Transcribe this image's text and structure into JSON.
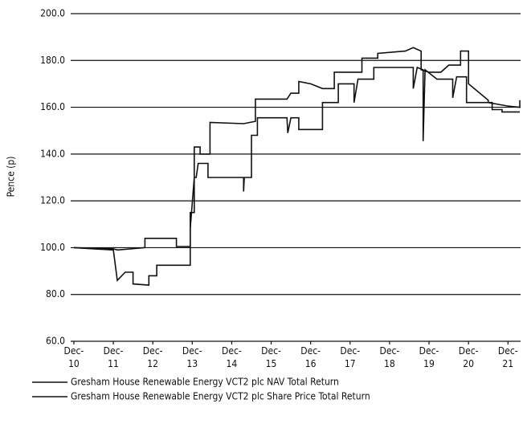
{
  "chart_data": {
    "type": "line",
    "y_label": "Pence (p)",
    "xlim": [
      2009.92,
      2021.32
    ],
    "xticks": [
      {
        "value": 2010,
        "label": "Dec-10"
      },
      {
        "value": 2011,
        "label": "Dec-11"
      },
      {
        "value": 2012,
        "label": "Dec-12"
      },
      {
        "value": 2013,
        "label": "Dec-13"
      },
      {
        "value": 2014,
        "label": "Dec-14"
      },
      {
        "value": 2015,
        "label": "Dec-15"
      },
      {
        "value": 2016,
        "label": "Dec-16"
      },
      {
        "value": 2017,
        "label": "Dec-17"
      },
      {
        "value": 2018,
        "label": "Dec-18"
      },
      {
        "value": 2019,
        "label": "Dec-19"
      },
      {
        "value": 2020,
        "label": "Dec-20"
      },
      {
        "value": 2021,
        "label": "Dec-21"
      }
    ],
    "ylim": [
      60,
      200
    ],
    "yticks": [
      {
        "value": 60,
        "label": "60.0"
      },
      {
        "value": 80,
        "label": "80.0"
      },
      {
        "value": 100,
        "label": "100.0"
      },
      {
        "value": 120,
        "label": "120.0"
      },
      {
        "value": 140,
        "label": "140.0"
      },
      {
        "value": 160,
        "label": "160.0"
      },
      {
        "value": 180,
        "label": "180.0"
      },
      {
        "value": 200,
        "label": "200.0"
      }
    ],
    "grid": true,
    "series": [
      {
        "name": "Gresham House Renewable Energy VCT2 plc NAV Total Return",
        "color": "#111111",
        "x": [
          2010,
          2011,
          2011.1,
          2011.8,
          2011.8,
          2012.6,
          2012.6,
          2012.95,
          2012.95,
          2013.05,
          2013.05,
          2013.2,
          2013.2,
          2013.45,
          2013.45,
          2014.3,
          2014.6,
          2014.6,
          2015.4,
          2015.5,
          2015.7,
          2015.7,
          2016,
          2016.3,
          2016.6,
          2016.6,
          2017.3,
          2017.3,
          2017.7,
          2017.7,
          2018.4,
          2018.6,
          2018.8,
          2018.8,
          2019,
          2019.3,
          2019.5,
          2019.8,
          2019.8,
          2020,
          2020,
          2020.5,
          2020.5,
          2021,
          2021.3,
          2021.3
        ],
        "values": [
          100,
          99.5,
          99,
          100,
          104,
          104,
          100.5,
          100.5,
          115,
          115,
          143,
          143,
          140,
          140,
          153.5,
          153,
          154,
          163.5,
          163.5,
          166,
          166,
          171,
          170,
          168,
          168,
          175,
          175,
          181,
          181,
          183,
          184,
          185.5,
          184,
          176,
          175,
          175,
          178,
          178,
          184,
          184,
          170,
          163,
          162,
          160.5,
          160,
          163
        ]
      },
      {
        "name": "Gresham House Renewable Energy VCT2 plc Share Price Total Return",
        "color": "#111111",
        "x": [
          2010,
          2011,
          2011.1,
          2011.3,
          2011.5,
          2011.5,
          2011.9,
          2011.9,
          2012.1,
          2012.1,
          2012.95,
          2012.95,
          2013.05,
          2013.1,
          2013.15,
          2013.4,
          2013.4,
          2014.3,
          2014.3,
          2014.32,
          2014.5,
          2014.5,
          2014.65,
          2014.65,
          2015.4,
          2015.42,
          2015.5,
          2015.7,
          2015.7,
          2016.3,
          2016.3,
          2016.7,
          2016.7,
          2017.1,
          2017.1,
          2017.2,
          2017.6,
          2017.6,
          2018.6,
          2018.6,
          2018.7,
          2018.85,
          2018.85,
          2018.9,
          2019.2,
          2019.6,
          2019.6,
          2019.7,
          2019.95,
          2019.95,
          2020.6,
          2020.6,
          2020.85,
          2020.85,
          2021.3
        ],
        "values": [
          100,
          99,
          86,
          89.5,
          89.5,
          84.5,
          84,
          88,
          88,
          92.5,
          92.5,
          108,
          130,
          130,
          136,
          136,
          130,
          130,
          124,
          130,
          130,
          148,
          148,
          155.5,
          155.5,
          149,
          155.5,
          155.5,
          150.5,
          150.5,
          162,
          162,
          170,
          170,
          162,
          172,
          172,
          177,
          177,
          168,
          177,
          176,
          145.5,
          176,
          172,
          172,
          164,
          173,
          173,
          162,
          162,
          159,
          159,
          158,
          158
        ]
      }
    ]
  }
}
